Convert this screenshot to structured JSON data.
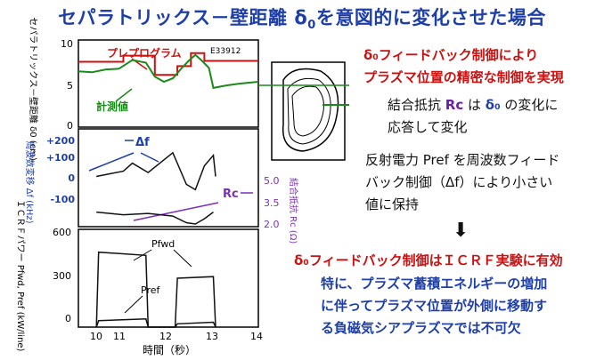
{
  "title": {
    "main": "セパラトリックス－壁距離 δ",
    "sub": "0",
    "tail": "を意図的に変化させた場合"
  },
  "right_text": {
    "p1_line1": "δ₀フィードバック制御により",
    "p1_line2": "プラズマ位置の精密な制御を実現",
    "p2_line1_a": "結合抵抗 ",
    "p2_line1_rc": "Rc",
    "p2_line1_b": " は ",
    "p2_line1_d": "δ₀",
    "p2_line1_c": " の変化に",
    "p2_line2": "応答して変化",
    "p3_line1": "反射電力 Pref を周波数フィード",
    "p3_line2": "バック制御（Δf）により小さい",
    "p3_line3": "値に保持",
    "arrow": "⬇",
    "p4": "δ₀フィードバック制御はＩＣＲＦ実験に有効",
    "p5_line1": "特に、プラズマ蓄積エネルギーの増加",
    "p5_line2": "に伴ってプラズマ位置が外側に移動す",
    "p5_line3": "る負磁気シアプラズマでは不可欠"
  },
  "colors": {
    "title": "#1f3fa8",
    "red": "#cc1111",
    "green": "#1a8a1a",
    "blue": "#1f3fa8",
    "purple": "#7a2fb8"
  },
  "chart_data": [
    {
      "type": "line",
      "panel": "separatrix",
      "ylabel": "セパラトリックス－壁距離 δ0 (cm)",
      "ylim": [
        0,
        10
      ],
      "yticks": [
        "0",
        "5",
        "10"
      ],
      "shot_label": "E33912",
      "series": [
        {
          "name": "プレプログラム",
          "color": "#cc1111",
          "x": [
            10.0,
            11.0,
            11.0,
            11.7,
            11.7,
            12.2,
            12.2,
            12.5,
            12.5,
            12.8,
            12.8,
            14.0
          ],
          "y": [
            7.5,
            7.5,
            8.2,
            8.2,
            6.0,
            6.0,
            7.0,
            7.0,
            8.5,
            8.5,
            7.6,
            7.6
          ]
        },
        {
          "name": "計測値",
          "color": "#1a8a1a",
          "x": [
            10.0,
            10.3,
            10.6,
            10.9,
            11.2,
            11.5,
            11.7,
            11.9,
            12.1,
            12.3,
            12.45,
            12.6,
            12.75,
            12.9,
            13.0,
            13.3,
            13.6,
            14.0
          ],
          "y": [
            6.4,
            6.3,
            6.6,
            6.7,
            7.7,
            7.4,
            5.8,
            5.2,
            5.6,
            6.8,
            7.6,
            8.3,
            7.6,
            6.8,
            4.5,
            4.8,
            5.0,
            5.2
          ]
        }
      ]
    },
    {
      "type": "line",
      "panel": "frequency_and_rc",
      "ylabel": "周波数変移 Δf (kHz)",
      "yticks": [
        "+200",
        "+100",
        "0",
        "-100"
      ],
      "ylim": [
        -150,
        220
      ],
      "y2label": "結合抵抗 Rc (Ω)",
      "y2ticks": [
        "5.0",
        "3.5",
        "2.0"
      ],
      "annotations": [
        "Δf",
        "Rc"
      ],
      "series": [
        {
          "name": "Δf",
          "color": "#111",
          "x": [
            10.4,
            10.7,
            11.0,
            11.2,
            11.55,
            12.1,
            12.4,
            12.6,
            12.8,
            13.0,
            13.05
          ],
          "y": [
            40,
            50,
            60,
            90,
            55,
            130,
            10,
            -10,
            80,
            120,
            40
          ]
        },
        {
          "name": "Rc",
          "color": "#111",
          "x": [
            10.4,
            10.7,
            11.0,
            11.55,
            12.1,
            12.4,
            12.6,
            12.8,
            13.0
          ],
          "y": [
            -95,
            -100,
            -105,
            -100,
            -110,
            -135,
            -140,
            -120,
            -95
          ]
        }
      ]
    },
    {
      "type": "line",
      "panel": "icrf_power",
      "ylabel": "ＩＣＲＦパワー Pfwd, Pref (kW/line)",
      "ylim": [
        0,
        600
      ],
      "yticks": [
        "0",
        "300",
        "600"
      ],
      "xlabel": "時間（秒）",
      "xticks": [
        "10",
        "11",
        "12",
        "13",
        "14"
      ],
      "series": [
        {
          "name": "Pfwd",
          "color": "#111",
          "x": [
            10.4,
            10.45,
            11.5,
            11.55,
            12.15,
            12.2,
            13.0,
            13.05
          ],
          "y": [
            0,
            460,
            440,
            0,
            0,
            300,
            310,
            0
          ]
        },
        {
          "name": "Pref",
          "color": "#111",
          "x": [
            10.4,
            10.45,
            11.5,
            11.55,
            12.15,
            12.2,
            13.0,
            13.05
          ],
          "y": [
            0,
            40,
            50,
            0,
            0,
            20,
            30,
            0
          ]
        }
      ]
    }
  ]
}
